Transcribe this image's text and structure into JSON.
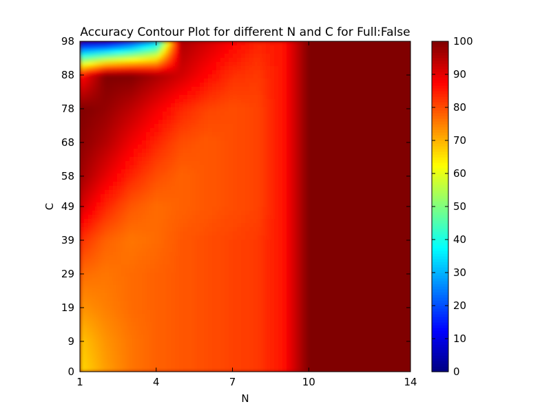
{
  "chart_data": {
    "type": "heatmap",
    "title": "Accuracy Contour Plot for different N and C for Full:False",
    "xlabel": "N",
    "ylabel": "C",
    "xlim": [
      1,
      14
    ],
    "ylim": [
      0,
      98
    ],
    "x_ticks": [
      "1",
      "4",
      "7",
      "10",
      "14"
    ],
    "y_ticks": [
      "0",
      "9",
      "19",
      "29",
      "39",
      "49",
      "58",
      "68",
      "78",
      "88",
      "98"
    ],
    "colorbar": {
      "range": [
        0,
        100
      ],
      "ticks": [
        "0",
        "10",
        "20",
        "30",
        "40",
        "50",
        "60",
        "70",
        "80",
        "90",
        "100"
      ],
      "colormap": "jet"
    },
    "x": [
      1,
      2,
      3,
      4,
      5,
      6,
      7,
      8,
      9,
      10,
      11,
      12,
      13,
      14
    ],
    "y": [
      0,
      9,
      19,
      29,
      39,
      49,
      58,
      68,
      78,
      88,
      98
    ],
    "z": [
      [
        66,
        72,
        76,
        78,
        79,
        80,
        81,
        82,
        86,
        100,
        100,
        100,
        100,
        100
      ],
      [
        68,
        73,
        76,
        78,
        79,
        80,
        81,
        82,
        86,
        100,
        100,
        100,
        100,
        100
      ],
      [
        73,
        75,
        77,
        78,
        79,
        80,
        81,
        82,
        86,
        100,
        100,
        100,
        100,
        100
      ],
      [
        77,
        76,
        77,
        78,
        79,
        80,
        81,
        82,
        86,
        100,
        100,
        100,
        100,
        100
      ],
      [
        83,
        78,
        76,
        77,
        79,
        80,
        81,
        82,
        86,
        100,
        100,
        100,
        100,
        100
      ],
      [
        92,
        84,
        79,
        77,
        78,
        79,
        80,
        81,
        86,
        100,
        100,
        100,
        100,
        100
      ],
      [
        97,
        90,
        84,
        80,
        78,
        79,
        80,
        81,
        86,
        100,
        100,
        100,
        100,
        100
      ],
      [
        99,
        95,
        89,
        84,
        80,
        79,
        80,
        81,
        86,
        100,
        100,
        100,
        100,
        100
      ],
      [
        100,
        98,
        94,
        89,
        84,
        81,
        80,
        81,
        86,
        100,
        100,
        100,
        100,
        100
      ],
      [
        85,
        100,
        100,
        96,
        92,
        87,
        83,
        82,
        86,
        100,
        100,
        100,
        100,
        100
      ],
      [
        5,
        5,
        15,
        30,
        96,
        92,
        88,
        84,
        86,
        100,
        100,
        100,
        100,
        100
      ]
    ]
  }
}
